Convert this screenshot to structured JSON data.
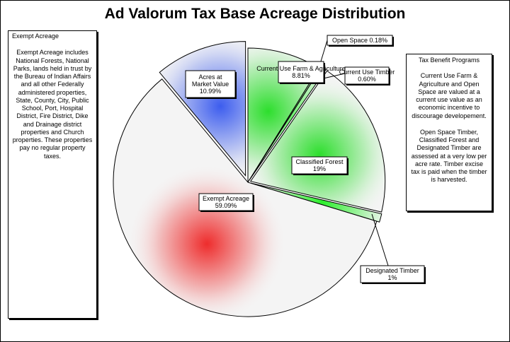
{
  "title": "Ad Valorum Tax Base Acreage Distribution",
  "exempt_box": {
    "heading": "Exempt Acreage",
    "body": "Exempt Acreage includes National Forests, National Parks, lands held in trust by the Bureau of Indian Affairs and all other Federally administered properties, State, County, City, Public School, Port, Hospital District, Fire District, Dike and Drainage district properties and Church properties. These properties pay no regular property taxes."
  },
  "tax_box": {
    "heading": "Tax Benefit Programs",
    "paragraph1": "Current Use Farm & Agriculture and Open Space are valued at a current use value as an economic incentive to discourage developement.",
    "paragraph2": "Open Space Timber, Classified Forest and Designated Timber are assessed at a very low per acre rate. Timber excise tax is paid when the timber is harvested."
  },
  "chart_data": {
    "type": "pie",
    "title": "Ad Valorum Tax Base Acreage Distribution",
    "slices": [
      {
        "name": "Current Use Farm & Agriculture",
        "value": 8.81,
        "label_text": "8.81%",
        "color": "#22dd22"
      },
      {
        "name": "Open Space",
        "value": 0.18,
        "label_text": "0.18%",
        "color": "#66ee66"
      },
      {
        "name": "Current Use Timber",
        "value": 0.6,
        "label_text": "0.60%",
        "color": "#66ee66"
      },
      {
        "name": "Classified Forest",
        "value": 19,
        "label_text": "19%",
        "color": "#22dd22"
      },
      {
        "name": "Designated Timber",
        "value": 1,
        "label_text": "1%",
        "color": "#22ee22"
      },
      {
        "name": "Exempt Acreage",
        "value": 59.09,
        "label_text": "59.09%",
        "color": "#ee2222"
      },
      {
        "name": "Acres at Market Value",
        "value": 10.99,
        "label_text": "10.99%",
        "color": "#3355ee"
      }
    ],
    "legend": "none",
    "grid": false
  }
}
